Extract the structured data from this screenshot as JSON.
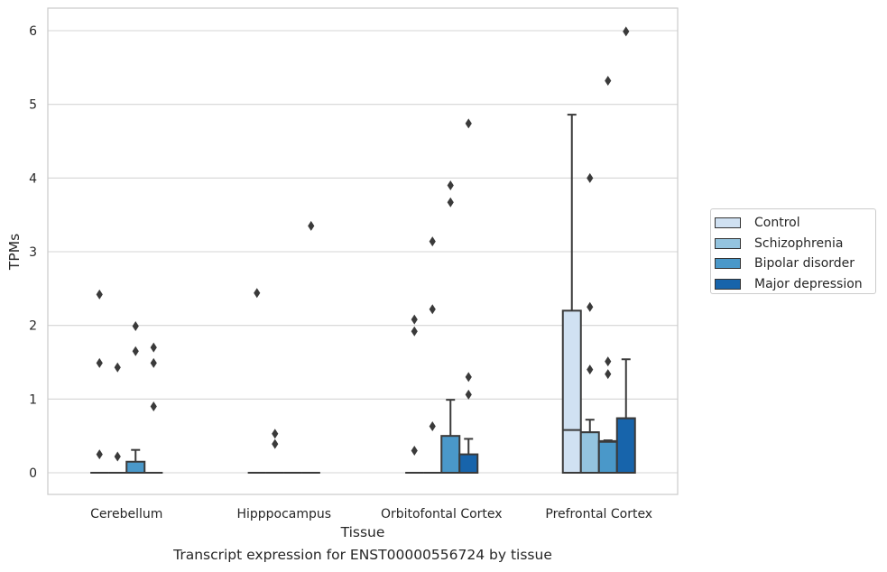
{
  "caption": "Transcript expression for ENST00000556724 by tissue",
  "chart_data": {
    "type": "box",
    "xlabel": "Tissue",
    "ylabel": "TPMs",
    "ylim": [
      -0.3,
      6.3
    ],
    "yticks": [
      0,
      1,
      2,
      3,
      4,
      5,
      6
    ],
    "categories": [
      "Cerebellum",
      "Hipppocampus",
      "Orbitofontal Cortex",
      "Prefrontal Cortex"
    ],
    "grid": "horizontal",
    "legend_position": "right",
    "series": [
      {
        "name": "Control",
        "color": "#d0e1f2",
        "boxes": [
          {
            "q1": 0,
            "median": 0,
            "q3": 0,
            "whislo": 0,
            "whishi": 0,
            "fliers": [
              2.42,
              1.49,
              0.25
            ]
          },
          {
            "q1": 0,
            "median": 0,
            "q3": 0,
            "whislo": 0,
            "whishi": 0,
            "fliers": [
              2.44
            ]
          },
          {
            "q1": 0,
            "median": 0,
            "q3": 0,
            "whislo": 0,
            "whishi": 0,
            "fliers": [
              2.08,
              1.92,
              0.3
            ]
          },
          {
            "q1": 0,
            "median": 0.58,
            "q3": 2.2,
            "whislo": 0,
            "whishi": 4.86,
            "fliers": []
          }
        ]
      },
      {
        "name": "Schizophrenia",
        "color": "#94c4df",
        "boxes": [
          {
            "q1": 0,
            "median": 0,
            "q3": 0,
            "whislo": 0,
            "whishi": 0,
            "fliers": [
              1.43,
              0.22
            ]
          },
          {
            "q1": 0,
            "median": 0,
            "q3": 0,
            "whislo": 0,
            "whishi": 0,
            "fliers": [
              0.53,
              0.39
            ]
          },
          {
            "q1": 0,
            "median": 0,
            "q3": 0,
            "whislo": 0,
            "whishi": 0,
            "fliers": [
              3.14,
              2.22,
              0.63
            ]
          },
          {
            "q1": 0,
            "median": 0.55,
            "q3": 0.55,
            "whislo": 0,
            "whishi": 0.72,
            "fliers": [
              4.0,
              2.25,
              1.4
            ]
          }
        ]
      },
      {
        "name": "Bipolar disorder",
        "color": "#4a98c9",
        "boxes": [
          {
            "q1": 0,
            "median": 0,
            "q3": 0.15,
            "whislo": 0,
            "whishi": 0.31,
            "fliers": [
              1.99,
              1.65
            ]
          },
          {
            "q1": 0,
            "median": 0,
            "q3": 0,
            "whislo": 0,
            "whishi": 0,
            "fliers": []
          },
          {
            "q1": 0,
            "median": 0,
            "q3": 0.5,
            "whislo": 0,
            "whishi": 0.99,
            "fliers": [
              3.9,
              3.67
            ]
          },
          {
            "q1": 0,
            "median": 0.42,
            "q3": 0.43,
            "whislo": 0,
            "whishi": 0.44,
            "fliers": [
              5.32,
              1.51,
              1.34
            ]
          }
        ]
      },
      {
        "name": "Major depression",
        "color": "#1764ab",
        "boxes": [
          {
            "q1": 0,
            "median": 0,
            "q3": 0,
            "whislo": 0,
            "whishi": 0,
            "fliers": [
              1.7,
              1.49,
              0.9
            ]
          },
          {
            "q1": 0,
            "median": 0,
            "q3": 0,
            "whislo": 0,
            "whishi": 0,
            "fliers": [
              3.35
            ]
          },
          {
            "q1": 0,
            "median": 0,
            "q3": 0.25,
            "whislo": 0,
            "whishi": 0.46,
            "fliers": [
              4.74,
              1.3,
              1.06
            ]
          },
          {
            "q1": 0,
            "median": 0.74,
            "q3": 0.74,
            "whislo": 0,
            "whishi": 1.54,
            "fliers": [
              5.99
            ]
          }
        ]
      }
    ]
  }
}
